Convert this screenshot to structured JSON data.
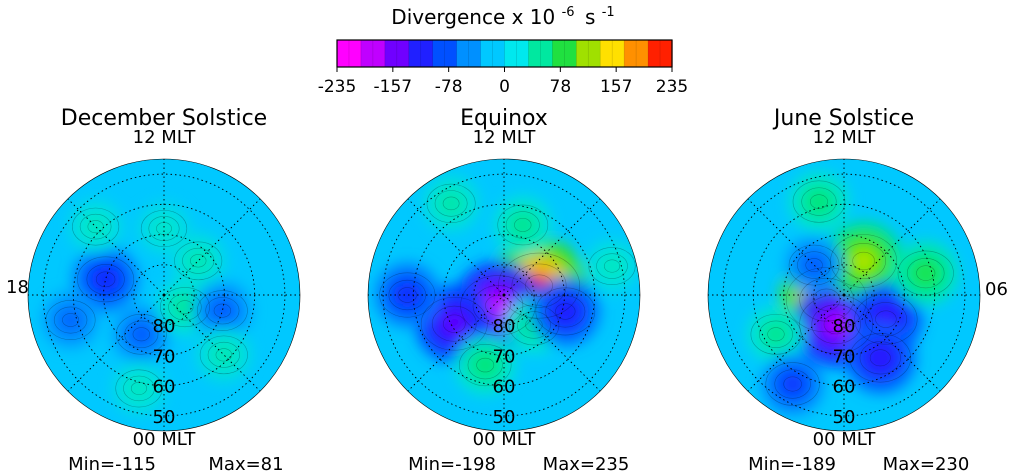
{
  "chart_data": {
    "type": "heatmap",
    "colorbar": {
      "title_main": "Divergence x 10",
      "title_exp": "-6",
      "title_unit": "s",
      "title_unit_exp": "-1",
      "ticks": [
        "-235",
        "-157",
        "-78",
        "0",
        "78",
        "157",
        "235"
      ],
      "range": [
        -235,
        235
      ],
      "colors": [
        "#ff00ff",
        "#c000ff",
        "#7000ff",
        "#2020ff",
        "#0050ff",
        "#0090ff",
        "#00c8ff",
        "#00e8ee",
        "#00e8a0",
        "#20e040",
        "#a0e000",
        "#ffe000",
        "#ff9000",
        "#ff2000"
      ]
    },
    "labels": {
      "mlt_top": "12 MLT",
      "mlt_bottom": "00 MLT",
      "mlt_left": "18",
      "mlt_right": "06",
      "latitudes": [
        "80",
        "70",
        "60",
        "50"
      ]
    },
    "panels": [
      {
        "title": "December Solstice",
        "min_text": "Min=-115",
        "max_text": "Max=81",
        "min": -115,
        "max": 81,
        "features": [
          {
            "mlt": 2,
            "lat": 75,
            "value": -60
          },
          {
            "mlt": 20,
            "lat": 82,
            "value": 55
          },
          {
            "mlt": 15,
            "lat": 74,
            "value": 45
          },
          {
            "mlt": 7,
            "lat": 70,
            "value": -95
          },
          {
            "mlt": 5,
            "lat": 58,
            "value": -55
          },
          {
            "mlt": 19,
            "lat": 70,
            "value": -60
          },
          {
            "mlt": 1,
            "lat": 58,
            "value": 40
          },
          {
            "mlt": 21,
            "lat": 62,
            "value": 45
          },
          {
            "mlt": 12,
            "lat": 68,
            "value": 35
          },
          {
            "mlt": 9,
            "lat": 58,
            "value": 40
          }
        ]
      },
      {
        "title": "Equinox",
        "min_text": "Min=-198",
        "max_text": "Max=235",
        "min": -198,
        "max": 235,
        "features": [
          {
            "mlt": 17,
            "lat": 78,
            "value": 235
          },
          {
            "mlt": 2,
            "lat": 86,
            "value": -198
          },
          {
            "mlt": 21,
            "lat": 76,
            "value": 60
          },
          {
            "mlt": 4,
            "lat": 71,
            "value": -150
          },
          {
            "mlt": 19,
            "lat": 69,
            "value": -110
          },
          {
            "mlt": 1,
            "lat": 66,
            "value": 70
          },
          {
            "mlt": 13,
            "lat": 66,
            "value": 60
          },
          {
            "mlt": 6,
            "lat": 58,
            "value": -90
          },
          {
            "mlt": 10,
            "lat": 55,
            "value": 50
          },
          {
            "mlt": 17,
            "lat": 53,
            "value": 40
          }
        ]
      },
      {
        "title": "June Solstice",
        "min_text": "Min=-189",
        "max_text": "Max=230",
        "min": -189,
        "max": 230,
        "features": [
          {
            "mlt": 5,
            "lat": 84,
            "value": 230
          },
          {
            "mlt": 1,
            "lat": 80,
            "value": -189
          },
          {
            "mlt": 14,
            "lat": 77,
            "value": 150
          },
          {
            "mlt": 9,
            "lat": 76,
            "value": -60
          },
          {
            "mlt": 20,
            "lat": 74,
            "value": -130
          },
          {
            "mlt": 22,
            "lat": 66,
            "value": -120
          },
          {
            "mlt": 17,
            "lat": 62,
            "value": 90
          },
          {
            "mlt": 11,
            "lat": 58,
            "value": 70
          },
          {
            "mlt": 4,
            "lat": 64,
            "value": 60
          },
          {
            "mlt": 2,
            "lat": 56,
            "value": -80
          }
        ]
      }
    ]
  }
}
